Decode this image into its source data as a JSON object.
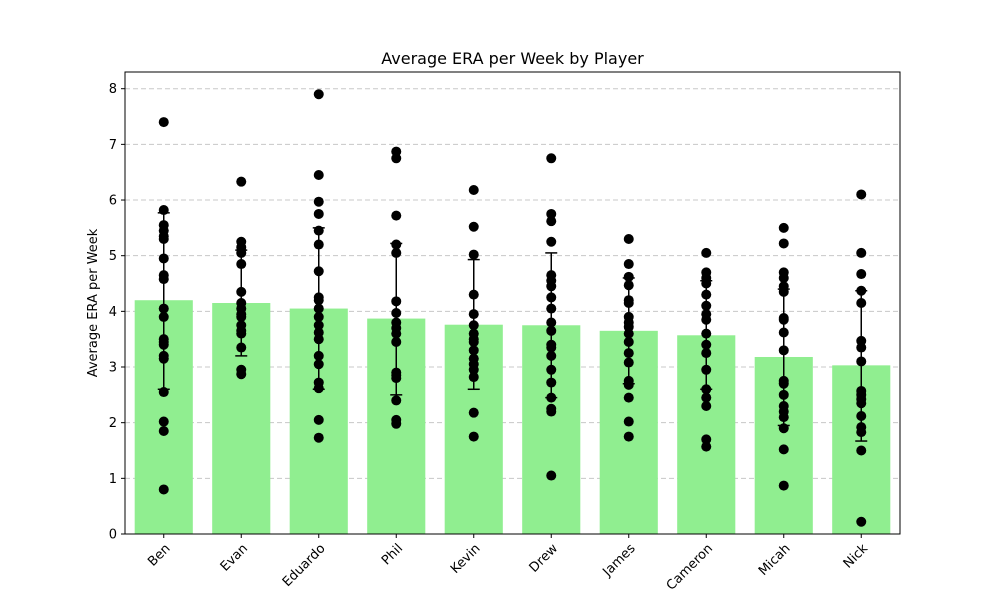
{
  "chart_data": {
    "type": "bar",
    "title": "Average ERA per Week by Player",
    "xlabel": "",
    "ylabel": "Average ERA per Week",
    "ylim": [
      0,
      8.3
    ],
    "yticks": [
      0,
      1,
      2,
      3,
      4,
      5,
      6,
      7,
      8
    ],
    "grid": "y-dashed",
    "bar_color": "#90EE90",
    "point_color": "#000000",
    "categories": [
      "Ben",
      "Evan",
      "Eduardo",
      "Phil",
      "Kevin",
      "Drew",
      "James",
      "Cameron",
      "Micah",
      "Nick"
    ],
    "values": [
      4.2,
      4.15,
      4.05,
      3.87,
      3.76,
      3.75,
      3.65,
      3.57,
      3.18,
      3.03
    ],
    "error_bars": [
      {
        "low": 2.6,
        "high": 5.77
      },
      {
        "low": 3.2,
        "high": 5.1
      },
      {
        "low": 2.6,
        "high": 5.5
      },
      {
        "low": 2.5,
        "high": 5.22
      },
      {
        "low": 2.6,
        "high": 4.93
      },
      {
        "low": 2.45,
        "high": 5.05
      },
      {
        "low": 2.7,
        "high": 4.6
      },
      {
        "low": 2.6,
        "high": 4.55
      },
      {
        "low": 1.95,
        "high": 4.4
      },
      {
        "low": 1.67,
        "high": 4.37
      }
    ],
    "points": [
      [
        7.4,
        5.82,
        5.55,
        5.45,
        5.35,
        5.3,
        4.95,
        4.65,
        4.58,
        4.05,
        3.9,
        3.5,
        3.45,
        3.4,
        3.2,
        3.15,
        2.55,
        2.02,
        1.85,
        0.8
      ],
      [
        6.33,
        5.25,
        5.15,
        5.05,
        4.85,
        4.35,
        4.15,
        4.05,
        3.95,
        3.9,
        3.75,
        3.65,
        3.6,
        3.35,
        2.95,
        2.87
      ],
      [
        7.9,
        6.45,
        5.97,
        5.75,
        5.45,
        5.2,
        4.72,
        4.25,
        4.2,
        4.05,
        3.9,
        3.75,
        3.62,
        3.5,
        3.2,
        3.05,
        2.72,
        2.62,
        2.05,
        1.73
      ],
      [
        6.87,
        6.75,
        5.72,
        5.2,
        5.05,
        4.18,
        3.97,
        3.8,
        3.7,
        3.6,
        3.45,
        2.9,
        2.85,
        2.8,
        2.4,
        2.05,
        1.98
      ],
      [
        6.18,
        5.52,
        5.02,
        4.3,
        3.95,
        3.75,
        3.6,
        3.5,
        3.45,
        3.3,
        3.15,
        3.05,
        2.95,
        2.82,
        2.18,
        1.75
      ],
      [
        6.75,
        5.75,
        5.62,
        5.25,
        4.65,
        4.55,
        4.45,
        4.25,
        4.05,
        3.8,
        3.65,
        3.4,
        3.35,
        3.2,
        2.95,
        2.72,
        2.45,
        2.25,
        2.2,
        1.05
      ],
      [
        5.3,
        4.85,
        4.62,
        4.47,
        4.2,
        4.15,
        3.9,
        3.8,
        3.72,
        3.6,
        3.45,
        3.25,
        3.08,
        2.75,
        2.68,
        2.45,
        2.02,
        1.75
      ],
      [
        5.05,
        4.7,
        4.6,
        4.5,
        4.3,
        4.1,
        3.95,
        3.85,
        3.6,
        3.4,
        3.25,
        2.95,
        2.6,
        2.45,
        2.3,
        1.7,
        1.57
      ],
      [
        5.5,
        5.22,
        4.7,
        4.6,
        4.45,
        4.35,
        3.88,
        3.85,
        3.62,
        3.3,
        2.75,
        2.7,
        2.5,
        2.3,
        2.2,
        2.1,
        1.9,
        1.52,
        0.87
      ],
      [
        6.1,
        5.05,
        4.67,
        4.37,
        4.15,
        3.47,
        3.35,
        3.1,
        2.57,
        2.5,
        2.42,
        2.35,
        2.12,
        1.92,
        1.83,
        1.5,
        0.22
      ]
    ]
  }
}
